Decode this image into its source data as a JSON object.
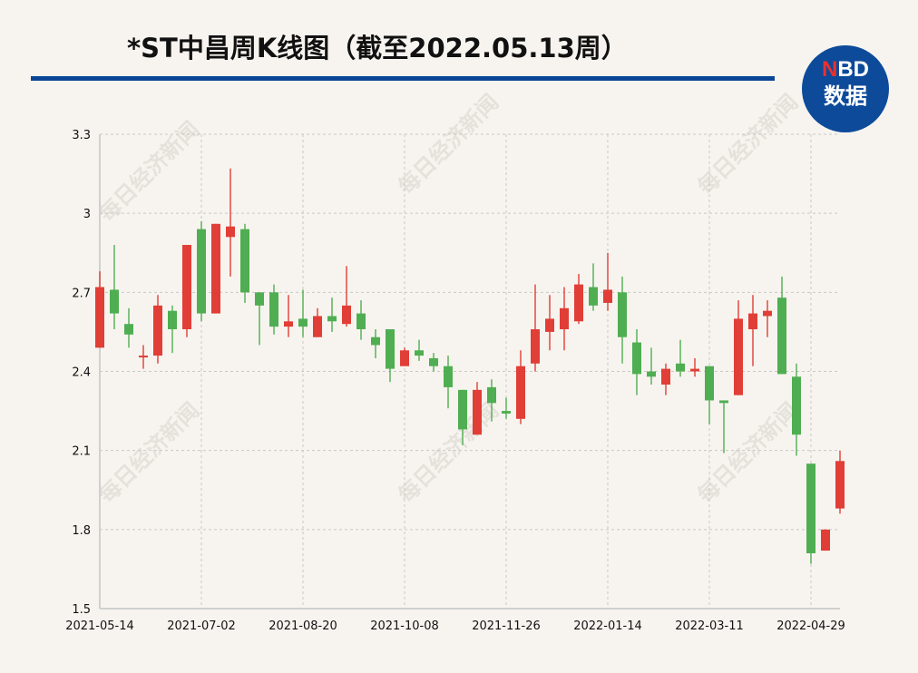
{
  "title": "*ST中昌周K线图（截至2022.05.13周）",
  "logo": {
    "top_n": "N",
    "top_rest": "BD",
    "bottom": "数据"
  },
  "watermark": "每日经济新闻",
  "colors": {
    "up": "#e03e36",
    "down": "#4fae52",
    "rule": "#0a4596",
    "grid": "#c8c8c8",
    "background": "#f7f4ef"
  },
  "chart_data": {
    "type": "candlestick",
    "title": "*ST中昌周K线图（截至2022.05.13周）",
    "xlabel": "",
    "ylabel": "",
    "ylim": [
      1.5,
      3.3
    ],
    "yticks": [
      1.5,
      1.8,
      2.1,
      2.4,
      2.7,
      3,
      3.3
    ],
    "ytick_labels": [
      "1.5",
      "1.8",
      "2.1",
      "2.4",
      "2.7",
      "3",
      "3.3"
    ],
    "xtick_indices": [
      0,
      7,
      14,
      21,
      28,
      35,
      42,
      49
    ],
    "xtick_labels": [
      "2021-05-14",
      "2021-07-02",
      "2021-08-20",
      "2021-10-08",
      "2021-11-26",
      "2022-01-14",
      "2022-03-11",
      "2022-04-29"
    ],
    "grid": true,
    "legend": "none",
    "fields": [
      "open",
      "high",
      "low",
      "close"
    ],
    "candles": [
      [
        2.49,
        2.78,
        2.49,
        2.72
      ],
      [
        2.71,
        2.88,
        2.56,
        2.62
      ],
      [
        2.58,
        2.64,
        2.49,
        2.54
      ],
      [
        2.46,
        2.5,
        2.41,
        2.46
      ],
      [
        2.46,
        2.69,
        2.43,
        2.65
      ],
      [
        2.63,
        2.65,
        2.47,
        2.56
      ],
      [
        2.56,
        2.88,
        2.53,
        2.88
      ],
      [
        2.94,
        2.97,
        2.59,
        2.62
      ],
      [
        2.62,
        2.96,
        2.62,
        2.96
      ],
      [
        2.91,
        3.17,
        2.76,
        2.95
      ],
      [
        2.94,
        2.96,
        2.66,
        2.7
      ],
      [
        2.7,
        2.7,
        2.5,
        2.65
      ],
      [
        2.7,
        2.73,
        2.54,
        2.57
      ],
      [
        2.57,
        2.69,
        2.53,
        2.59
      ],
      [
        2.6,
        2.71,
        2.53,
        2.57
      ],
      [
        2.53,
        2.64,
        2.53,
        2.61
      ],
      [
        2.61,
        2.68,
        2.55,
        2.59
      ],
      [
        2.58,
        2.8,
        2.57,
        2.65
      ],
      [
        2.62,
        2.67,
        2.52,
        2.56
      ],
      [
        2.53,
        2.56,
        2.45,
        2.5
      ],
      [
        2.56,
        2.56,
        2.36,
        2.41
      ],
      [
        2.42,
        2.49,
        2.42,
        2.48
      ],
      [
        2.48,
        2.52,
        2.44,
        2.46
      ],
      [
        2.45,
        2.47,
        2.4,
        2.42
      ],
      [
        2.42,
        2.46,
        2.26,
        2.34
      ],
      [
        2.33,
        2.33,
        2.12,
        2.18
      ],
      [
        2.16,
        2.36,
        2.16,
        2.33
      ],
      [
        2.34,
        2.37,
        2.21,
        2.28
      ],
      [
        2.25,
        2.3,
        2.22,
        2.24
      ],
      [
        2.22,
        2.48,
        2.2,
        2.42
      ],
      [
        2.43,
        2.73,
        2.4,
        2.56
      ],
      [
        2.55,
        2.69,
        2.48,
        2.6
      ],
      [
        2.56,
        2.72,
        2.48,
        2.64
      ],
      [
        2.59,
        2.77,
        2.58,
        2.73
      ],
      [
        2.72,
        2.81,
        2.63,
        2.65
      ],
      [
        2.66,
        2.85,
        2.63,
        2.71
      ],
      [
        2.7,
        2.76,
        2.43,
        2.53
      ],
      [
        2.51,
        2.56,
        2.31,
        2.39
      ],
      [
        2.4,
        2.49,
        2.35,
        2.38
      ],
      [
        2.35,
        2.43,
        2.31,
        2.41
      ],
      [
        2.43,
        2.52,
        2.38,
        2.4
      ],
      [
        2.4,
        2.45,
        2.38,
        2.41
      ],
      [
        2.42,
        2.42,
        2.2,
        2.29
      ],
      [
        2.29,
        2.29,
        2.09,
        2.28
      ],
      [
        2.31,
        2.67,
        2.31,
        2.6
      ],
      [
        2.56,
        2.69,
        2.42,
        2.62
      ],
      [
        2.61,
        2.67,
        2.53,
        2.63
      ],
      [
        2.68,
        2.76,
        2.39,
        2.39
      ],
      [
        2.38,
        2.43,
        2.08,
        2.16
      ],
      [
        2.05,
        2.05,
        1.67,
        1.71
      ],
      [
        1.72,
        1.8,
        1.72,
        1.8
      ],
      [
        1.88,
        2.1,
        1.86,
        2.06
      ]
    ]
  }
}
